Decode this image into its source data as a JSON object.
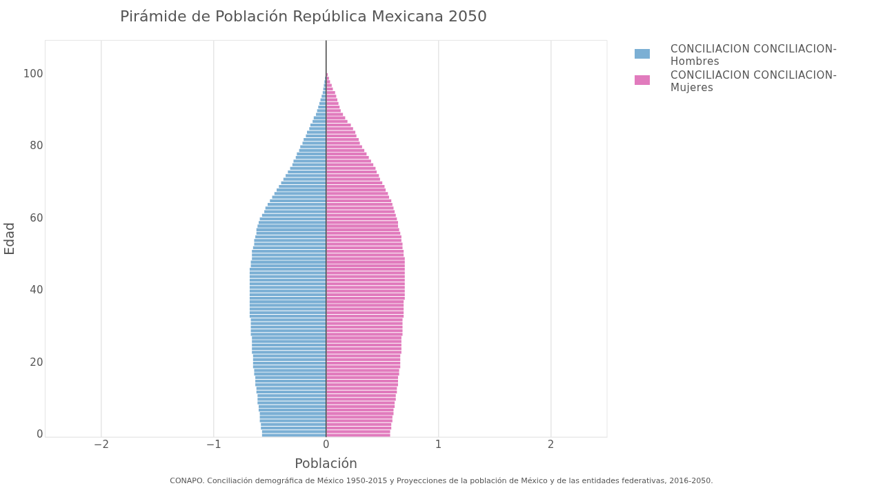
{
  "chart_data": {
    "type": "bar",
    "orientation": "horizontal",
    "title": "Pirámide de Población República Mexicana 2050",
    "xlabel": "Población",
    "ylabel": "Edad",
    "x": [
      0,
      1,
      2,
      3,
      4,
      5,
      6,
      7,
      8,
      9,
      10,
      11,
      12,
      13,
      14,
      15,
      16,
      17,
      18,
      19,
      20,
      21,
      22,
      23,
      24,
      25,
      26,
      27,
      28,
      29,
      30,
      31,
      32,
      33,
      34,
      35,
      36,
      37,
      38,
      39,
      40,
      41,
      42,
      43,
      44,
      45,
      46,
      47,
      48,
      49,
      50,
      51,
      52,
      53,
      54,
      55,
      56,
      57,
      58,
      59,
      60,
      61,
      62,
      63,
      64,
      65,
      66,
      67,
      68,
      69,
      70,
      71,
      72,
      73,
      74,
      75,
      76,
      77,
      78,
      79,
      80,
      81,
      82,
      83,
      84,
      85,
      86,
      87,
      88,
      89,
      90,
      91,
      92,
      93,
      94,
      95,
      96,
      97,
      98,
      99,
      100
    ],
    "series": [
      {
        "name": "CONCILIACION CONCILIACION-Hombres",
        "color": "#7bafd4",
        "values": [
          -0.57,
          -0.57,
          -0.58,
          -0.58,
          -0.59,
          -0.59,
          -0.59,
          -0.6,
          -0.6,
          -0.61,
          -0.61,
          -0.61,
          -0.62,
          -0.62,
          -0.63,
          -0.63,
          -0.63,
          -0.64,
          -0.64,
          -0.65,
          -0.65,
          -0.65,
          -0.65,
          -0.66,
          -0.66,
          -0.66,
          -0.66,
          -0.66,
          -0.67,
          -0.67,
          -0.67,
          -0.67,
          -0.67,
          -0.68,
          -0.68,
          -0.68,
          -0.68,
          -0.68,
          -0.68,
          -0.68,
          -0.68,
          -0.68,
          -0.68,
          -0.68,
          -0.68,
          -0.68,
          -0.68,
          -0.67,
          -0.67,
          -0.66,
          -0.66,
          -0.66,
          -0.65,
          -0.64,
          -0.64,
          -0.63,
          -0.62,
          -0.62,
          -0.61,
          -0.6,
          -0.59,
          -0.57,
          -0.55,
          -0.54,
          -0.52,
          -0.5,
          -0.48,
          -0.46,
          -0.44,
          -0.42,
          -0.4,
          -0.38,
          -0.36,
          -0.34,
          -0.32,
          -0.3,
          -0.29,
          -0.27,
          -0.26,
          -0.24,
          -0.23,
          -0.21,
          -0.2,
          -0.18,
          -0.17,
          -0.15,
          -0.14,
          -0.12,
          -0.11,
          -0.09,
          -0.08,
          -0.07,
          -0.06,
          -0.05,
          -0.04,
          -0.03,
          -0.025,
          -0.02,
          -0.015,
          -0.01,
          null
        ]
      },
      {
        "name": "CONCILIACION CONCILIACION-Mujeres",
        "color": "#e17bbd",
        "values": [
          0.57,
          0.57,
          0.58,
          0.58,
          0.59,
          0.59,
          0.6,
          0.6,
          0.61,
          0.61,
          0.62,
          0.62,
          0.63,
          0.63,
          0.64,
          0.64,
          0.64,
          0.65,
          0.65,
          0.66,
          0.66,
          0.66,
          0.66,
          0.67,
          0.67,
          0.67,
          0.67,
          0.67,
          0.68,
          0.68,
          0.68,
          0.68,
          0.68,
          0.69,
          0.69,
          0.69,
          0.69,
          0.69,
          0.7,
          0.7,
          0.7,
          0.7,
          0.7,
          0.7,
          0.7,
          0.7,
          0.7,
          0.7,
          0.7,
          0.7,
          0.69,
          0.69,
          0.68,
          0.68,
          0.67,
          0.67,
          0.66,
          0.65,
          0.64,
          0.64,
          0.63,
          0.62,
          0.61,
          0.6,
          0.59,
          0.58,
          0.56,
          0.55,
          0.53,
          0.52,
          0.5,
          0.48,
          0.47,
          0.45,
          0.44,
          0.42,
          0.4,
          0.38,
          0.36,
          0.34,
          0.32,
          0.3,
          0.29,
          0.27,
          0.26,
          0.24,
          0.22,
          0.19,
          0.17,
          0.15,
          0.13,
          0.12,
          0.11,
          0.1,
          0.09,
          0.08,
          0.06,
          0.05,
          0.035,
          0.025,
          0.015
        ]
      }
    ],
    "xlim": [
      -2.5,
      2.5
    ],
    "xticks": [
      {
        "value": -2,
        "label": "−2"
      },
      {
        "value": -1,
        "label": "−1"
      },
      0,
      1,
      2
    ],
    "ylim": [
      -0.5,
      109.5
    ],
    "yticks": [
      0,
      20,
      40,
      60,
      80,
      100
    ],
    "grid": "x",
    "legend": "top right",
    "stacked": true,
    "ref_lines": [
      {
        "axis": "x",
        "value": 0,
        "color": "#444444"
      }
    ],
    "annotations": [
      "CONAPO. Conciliación demográfica de México 1950-2015 y Proyecciones de la población de México y de las entidades federativas, 2016-2050."
    ]
  }
}
